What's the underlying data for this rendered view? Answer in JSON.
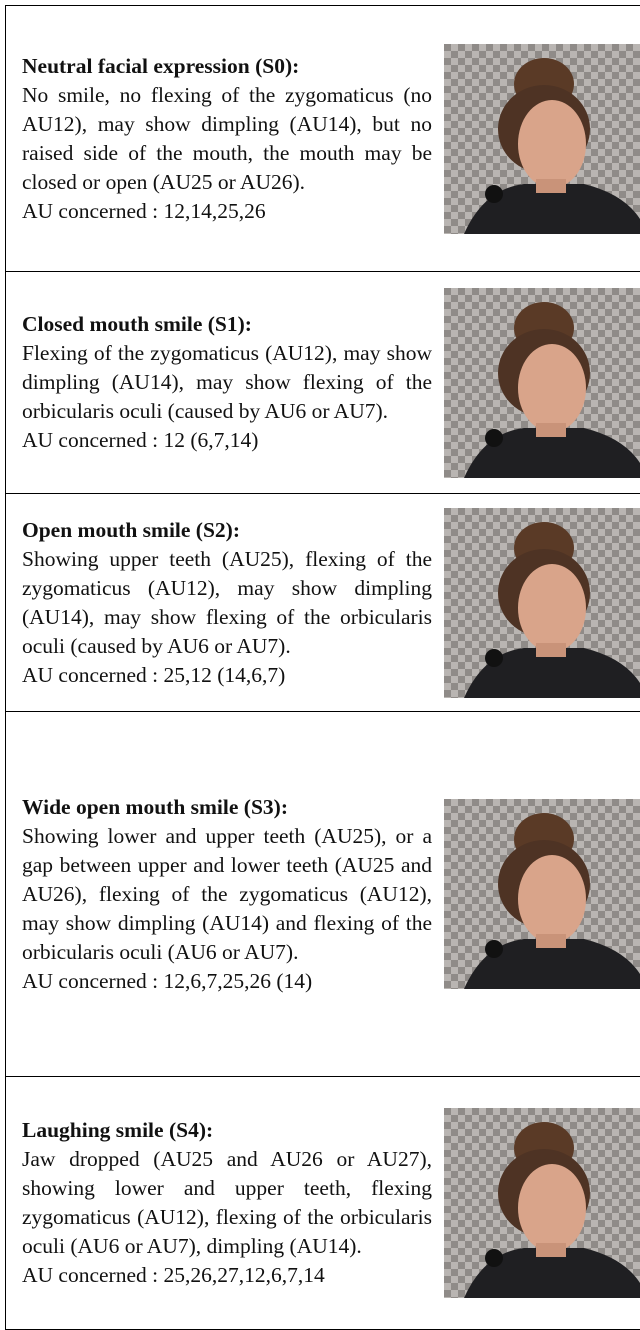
{
  "table": {
    "rows": [
      {
        "title": "Neutral facial expression (S0):",
        "description": "No smile, no flexing of the zygomaticus (no AU12), may show dimpling (AU14), but no raised side of the mouth, the mouth may be closed or open (AU25 or AU26).",
        "au": "AU concerned : 12,14,25,26"
      },
      {
        "title": "Closed mouth smile (S1):",
        "description": "Flexing of the zygomaticus (AU12), may show dimpling (AU14), may show flexing of the orbicularis oculi (caused by AU6 or AU7).",
        "au": "AU concerned : 12 (6,7,14)"
      },
      {
        "title": "Open mouth smile (S2):",
        "description": "Showing upper teeth (AU25), flexing of the zygomaticus (AU12), may show dimpling (AU14), may show flexing of the orbicularis oculi (caused by AU6 or AU7).",
        "au": "AU concerned : 25,12 (14,6,7)"
      },
      {
        "title": "Wide open mouth smile (S3):",
        "description": "Showing lower and upper teeth (AU25), or a gap between upper and lower teeth (AU25 and AU26), flexing of the zygomaticus (AU12), may show dimpling (AU14) and flexing of the orbicularis oculi (AU6 or AU7).",
        "au": "AU concerned : 12,6,7,25,26 (14)"
      },
      {
        "title": "Laughing smile (S4):",
        "description": "Jaw dropped (AU25 and AU26 or AU27), showing lower and upper teeth, flexing zygomaticus (AU12), flexing of the orbicularis oculi (AU6 or AU7), dimpling (AU14).",
        "au": "AU concerned : 25,26,27,12,6,7,14"
      }
    ]
  }
}
